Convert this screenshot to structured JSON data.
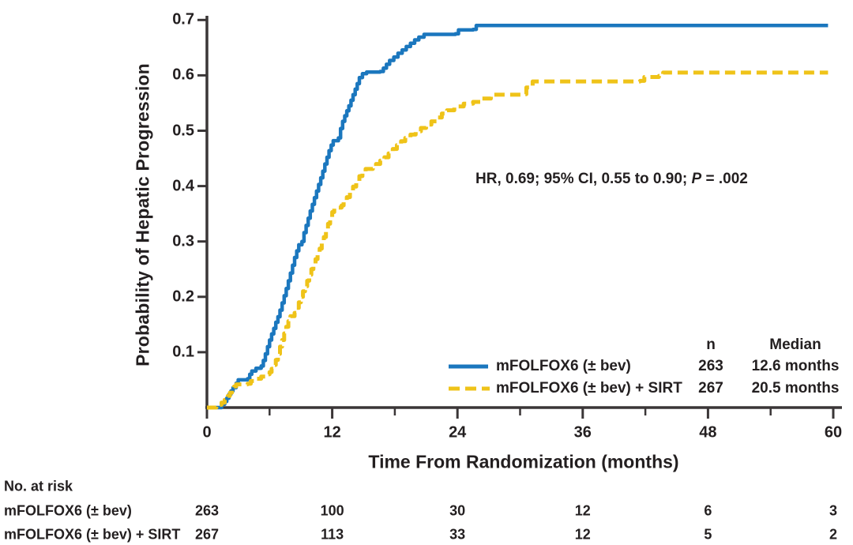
{
  "colors": {
    "series_folfox": "#1B77BE",
    "series_sirt": "#EFC319",
    "axis": "#3A3637",
    "text": "#231F20",
    "background": "#FFFFFF"
  },
  "annotation": {
    "prefix": "HR, 0.69; 95% CI, 0.55 to 0.90; ",
    "p_label": "P",
    "suffix": " = .002"
  },
  "legend": {
    "col_n": "n",
    "col_median": "Median",
    "rows": [
      {
        "label": "mFOLFOX6 (± bev)",
        "n": "263",
        "median": "12.6 months"
      },
      {
        "label": "mFOLFOX6 (± bev) + SIRT",
        "n": "267",
        "median": "20.5 months"
      }
    ]
  },
  "risk_table": {
    "title": "No. at risk",
    "rows": [
      {
        "label": "mFOLFOX6 (± bev)",
        "counts": [
          "263",
          "100",
          "30",
          "12",
          "6",
          "3"
        ]
      },
      {
        "label": "mFOLFOX6 (± bev) + SIRT",
        "counts": [
          "267",
          "113",
          "33",
          "12",
          "5",
          "2"
        ]
      }
    ]
  },
  "chart_data": {
    "type": "line",
    "subtype": "kaplan-meier-step",
    "title": "",
    "xlabel": "Time From Randomization (months)",
    "ylabel": "Probability of Hepatic Progression",
    "xlim": [
      0,
      60
    ],
    "ylim": [
      0,
      0.7
    ],
    "x_ticks": [
      0,
      12,
      24,
      36,
      48,
      60
    ],
    "x_minor_ticks": [
      6,
      18,
      30,
      42,
      54
    ],
    "y_ticks": [
      0.1,
      0.2,
      0.3,
      0.4,
      0.5,
      0.6,
      0.7
    ],
    "grid": false,
    "legend_position": "lower right",
    "annotation": "HR, 0.69; 95% CI, 0.55 to 0.90; P = .002",
    "series": [
      {
        "name": "mFOLFOX6 (± bev)",
        "line": "solid",
        "color": "#1B77BE",
        "n": 263,
        "median_months": 12.6,
        "points": [
          [
            0,
            0
          ],
          [
            1.2,
            0
          ],
          [
            1.4,
            0.006
          ],
          [
            1.7,
            0.011
          ],
          [
            1.9,
            0.017
          ],
          [
            2.1,
            0.024
          ],
          [
            2.3,
            0.03
          ],
          [
            2.5,
            0.036
          ],
          [
            2.8,
            0.044
          ],
          [
            3.0,
            0.05
          ],
          [
            3.9,
            0.052
          ],
          [
            4.1,
            0.06
          ],
          [
            4.3,
            0.066
          ],
          [
            4.7,
            0.071
          ],
          [
            5.2,
            0.075
          ],
          [
            5.4,
            0.085
          ],
          [
            5.6,
            0.097
          ],
          [
            5.8,
            0.11
          ],
          [
            6.0,
            0.122
          ],
          [
            6.2,
            0.133
          ],
          [
            6.4,
            0.143
          ],
          [
            6.6,
            0.154
          ],
          [
            6.8,
            0.164
          ],
          [
            7.0,
            0.176
          ],
          [
            7.2,
            0.189
          ],
          [
            7.4,
            0.202
          ],
          [
            7.6,
            0.215
          ],
          [
            7.8,
            0.229
          ],
          [
            8.0,
            0.243
          ],
          [
            8.2,
            0.257
          ],
          [
            8.4,
            0.271
          ],
          [
            8.6,
            0.283
          ],
          [
            8.8,
            0.294
          ],
          [
            9.1,
            0.3
          ],
          [
            9.3,
            0.316
          ],
          [
            9.5,
            0.329
          ],
          [
            9.7,
            0.342
          ],
          [
            9.9,
            0.355
          ],
          [
            10.1,
            0.367
          ],
          [
            10.3,
            0.379
          ],
          [
            10.5,
            0.391
          ],
          [
            10.7,
            0.403
          ],
          [
            10.9,
            0.415
          ],
          [
            11.1,
            0.427
          ],
          [
            11.3,
            0.44
          ],
          [
            11.5,
            0.452
          ],
          [
            11.7,
            0.464
          ],
          [
            11.9,
            0.474
          ],
          [
            12.1,
            0.482
          ],
          [
            12.6,
            0.487
          ],
          [
            12.8,
            0.504
          ],
          [
            13.0,
            0.517
          ],
          [
            13.2,
            0.527
          ],
          [
            13.4,
            0.536
          ],
          [
            13.6,
            0.545
          ],
          [
            13.8,
            0.555
          ],
          [
            14.0,
            0.565
          ],
          [
            14.2,
            0.575
          ],
          [
            14.4,
            0.585
          ],
          [
            14.6,
            0.596
          ],
          [
            14.9,
            0.603
          ],
          [
            15.3,
            0.606
          ],
          [
            16.6,
            0.607
          ],
          [
            16.9,
            0.613
          ],
          [
            17.2,
            0.62
          ],
          [
            17.5,
            0.627
          ],
          [
            17.9,
            0.633
          ],
          [
            18.3,
            0.64
          ],
          [
            18.7,
            0.646
          ],
          [
            19.1,
            0.652
          ],
          [
            19.5,
            0.658
          ],
          [
            19.9,
            0.664
          ],
          [
            20.3,
            0.669
          ],
          [
            20.8,
            0.674
          ],
          [
            23.8,
            0.675
          ],
          [
            24.1,
            0.682
          ],
          [
            25.5,
            0.683
          ],
          [
            25.8,
            0.69
          ],
          [
            59.5,
            0.69
          ]
        ]
      },
      {
        "name": "mFOLFOX6 (± bev) + SIRT",
        "line": "dashed",
        "color": "#EFC319",
        "n": 267,
        "median_months": 20.5,
        "points": [
          [
            0,
            0
          ],
          [
            0.7,
            0
          ],
          [
            0.9,
            0.005
          ],
          [
            1.4,
            0.009
          ],
          [
            1.7,
            0.014
          ],
          [
            2.0,
            0.021
          ],
          [
            2.2,
            0.027
          ],
          [
            2.4,
            0.033
          ],
          [
            2.6,
            0.038
          ],
          [
            2.8,
            0.042
          ],
          [
            3.9,
            0.043
          ],
          [
            4.2,
            0.048
          ],
          [
            4.7,
            0.052
          ],
          [
            5.2,
            0.056
          ],
          [
            5.7,
            0.06
          ],
          [
            6.0,
            0.064
          ],
          [
            6.2,
            0.07
          ],
          [
            6.4,
            0.077
          ],
          [
            6.6,
            0.086
          ],
          [
            6.8,
            0.097
          ],
          [
            7.0,
            0.11
          ],
          [
            7.2,
            0.122
          ],
          [
            7.4,
            0.134
          ],
          [
            7.6,
            0.146
          ],
          [
            7.8,
            0.156
          ],
          [
            8.0,
            0.165
          ],
          [
            8.4,
            0.171
          ],
          [
            8.6,
            0.18
          ],
          [
            8.8,
            0.19
          ],
          [
            9.0,
            0.2
          ],
          [
            9.2,
            0.21
          ],
          [
            9.4,
            0.219
          ],
          [
            9.6,
            0.229
          ],
          [
            9.8,
            0.24
          ],
          [
            10.0,
            0.25
          ],
          [
            10.2,
            0.259
          ],
          [
            10.4,
            0.268
          ],
          [
            10.6,
            0.277
          ],
          [
            10.8,
            0.287
          ],
          [
            11.0,
            0.297
          ],
          [
            11.2,
            0.308
          ],
          [
            11.4,
            0.32
          ],
          [
            11.6,
            0.332
          ],
          [
            11.8,
            0.343
          ],
          [
            12.0,
            0.353
          ],
          [
            12.2,
            0.361
          ],
          [
            12.9,
            0.365
          ],
          [
            13.1,
            0.372
          ],
          [
            13.4,
            0.38
          ],
          [
            13.7,
            0.389
          ],
          [
            14.0,
            0.399
          ],
          [
            14.3,
            0.409
          ],
          [
            14.6,
            0.418
          ],
          [
            14.9,
            0.425
          ],
          [
            15.2,
            0.431
          ],
          [
            15.9,
            0.434
          ],
          [
            16.2,
            0.44
          ],
          [
            16.6,
            0.446
          ],
          [
            17.0,
            0.452
          ],
          [
            17.4,
            0.459
          ],
          [
            17.8,
            0.467
          ],
          [
            18.2,
            0.474
          ],
          [
            18.6,
            0.481
          ],
          [
            19.0,
            0.487
          ],
          [
            19.5,
            0.493
          ],
          [
            20.0,
            0.499
          ],
          [
            20.5,
            0.505
          ],
          [
            21.0,
            0.511
          ],
          [
            21.5,
            0.517
          ],
          [
            22.0,
            0.524
          ],
          [
            22.5,
            0.531
          ],
          [
            23.0,
            0.537
          ],
          [
            23.7,
            0.544
          ],
          [
            24.6,
            0.549
          ],
          [
            25.5,
            0.552
          ],
          [
            26.3,
            0.558
          ],
          [
            27.2,
            0.565
          ],
          [
            30.1,
            0.566
          ],
          [
            30.6,
            0.578
          ],
          [
            31.2,
            0.589
          ],
          [
            41.5,
            0.59
          ],
          [
            41.9,
            0.597
          ],
          [
            43.3,
            0.599
          ],
          [
            43.7,
            0.605
          ],
          [
            59.5,
            0.605
          ]
        ]
      }
    ]
  }
}
